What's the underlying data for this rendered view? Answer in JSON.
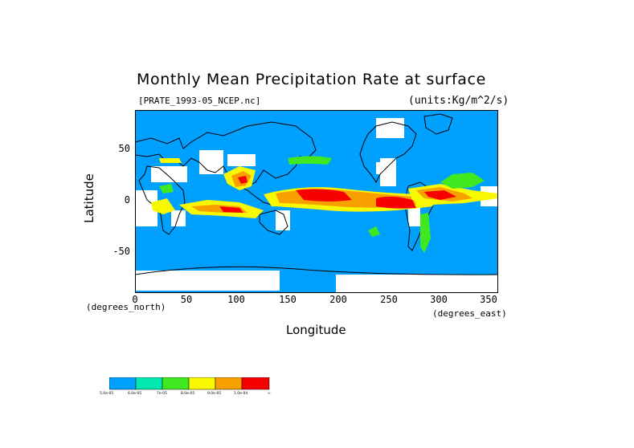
{
  "title": "Monthly Mean Precipitation Rate at surface",
  "file_label": "[PRATE_1993-05_NCEP.nc]",
  "units_label": "(units:Kg/m^2/s)",
  "axes": {
    "y_title": "Latitude",
    "x_title": "Longitude",
    "y_unit": "(degrees_north)",
    "x_unit": "(degrees_east)",
    "y_ticks": [
      "50",
      "0",
      "-50"
    ],
    "x_ticks": [
      "0",
      "50",
      "100",
      "150",
      "200",
      "250",
      "300",
      "350"
    ]
  },
  "map": {
    "ocean_color": "#00a0ff",
    "missing_color": "#ffffff",
    "coast_color": "#000000"
  },
  "legend": {
    "colors": [
      "#00a0ff",
      "#00e8b0",
      "#40e820",
      "#f8f800",
      "#f8a000",
      "#f80000"
    ],
    "labels": [
      "5.0e-05",
      "6.0e-05",
      "7e-05",
      "8.0e-05",
      "9.0e-05",
      "1.0e-04",
      "∞"
    ]
  }
}
